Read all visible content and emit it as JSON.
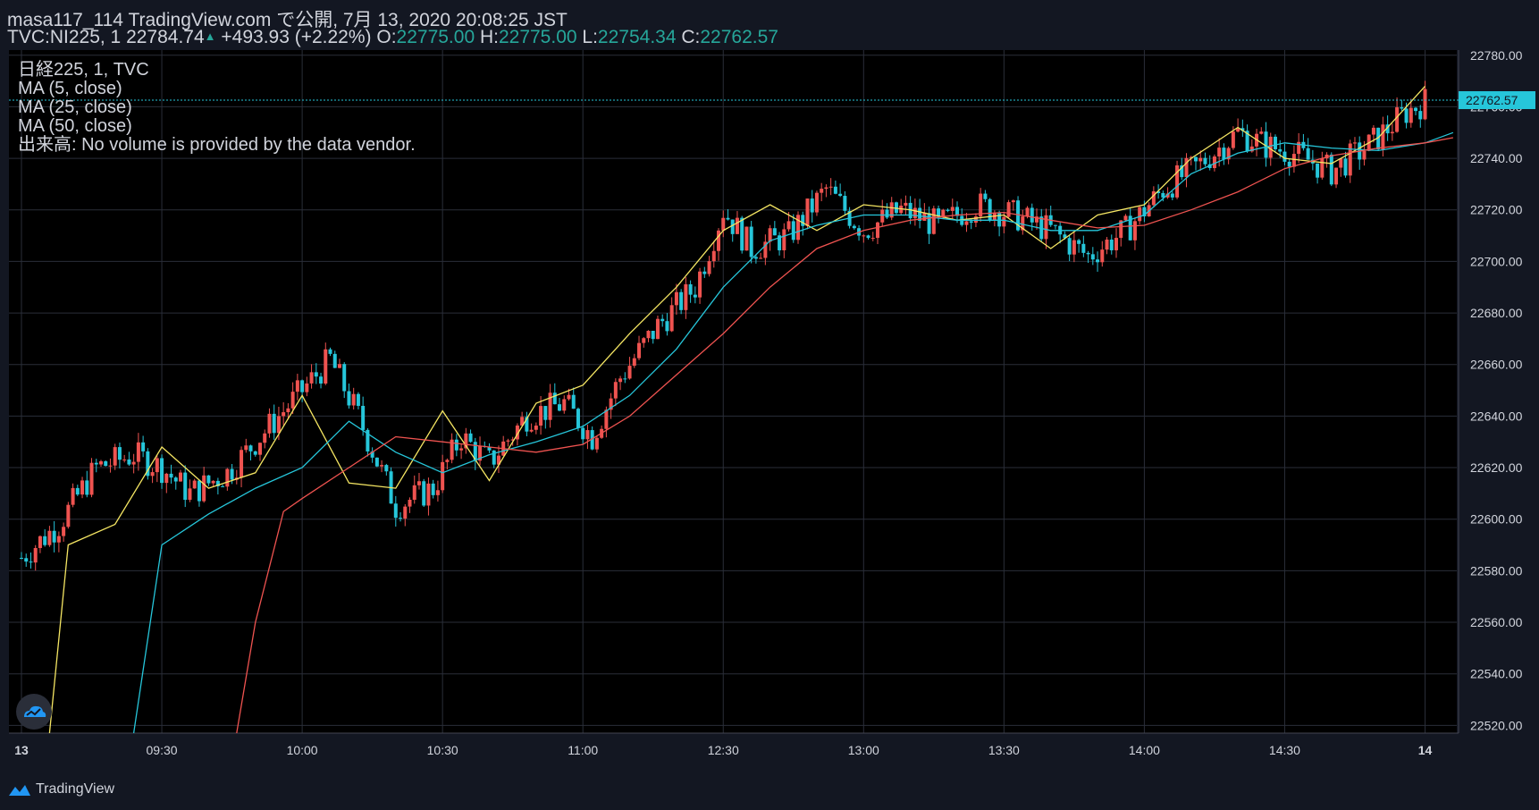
{
  "header": {
    "publisher_line": "masa117_114 TradingView.com で公開, 7月 13, 2020 20:08:25 JST",
    "symbol": "TVC:NI225, 1",
    "last": "22784.74",
    "arrow": "▲",
    "change": "+493.93 (+2.22%)",
    "o_label": "O:",
    "o_value": "22775.00",
    "h_label": "H:",
    "h_value": "22775.00",
    "l_label": "L:",
    "l_value": "22754.34",
    "c_label": "C:",
    "c_value": "22762.57"
  },
  "legend": {
    "series_title": "日経225, 1, TVC",
    "ma5": "MA (5, close)",
    "ma25": "MA (25, close)",
    "ma50": "MA (50, close)",
    "volume": "出来高: No volume is provided by the data vendor."
  },
  "footer": {
    "brand": "TradingView"
  },
  "colors": {
    "background": "#131722",
    "grid": "#2a2e39",
    "up": "#ef5350",
    "down": "#26c6da",
    "ma5": "#f5e663",
    "ma25": "#26c6da",
    "ma50": "#ef5350",
    "axis_text": "#d1d4dc",
    "price_tag_bg": "#26c6da",
    "price_tag_text": "#131722"
  },
  "icons": {
    "badge": "tradingview-cloud-icon",
    "logo": "tradingview-logo-icon"
  },
  "chart_data": {
    "type": "candlestick",
    "title": "日経225, 1, TVC",
    "ylim": [
      22517,
      22782
    ],
    "y_ticks": [
      22520,
      22540,
      22560,
      22580,
      22600,
      22620,
      22640,
      22660,
      22680,
      22700,
      22720,
      22740,
      22760,
      22780
    ],
    "y_tick_labels": [
      "22520.00",
      "22540.00",
      "22560.00",
      "22580.00",
      "22600.00",
      "22620.00",
      "22640.00",
      "22660.00",
      "22680.00",
      "22700.00",
      "22720.00",
      "22740.00",
      "22760.00",
      "22780.00"
    ],
    "x_tick_labels": [
      "13",
      "09:30",
      "10:00",
      "10:30",
      "11:00",
      "12:30",
      "13:00",
      "13:30",
      "14:00",
      "14:30",
      "14"
    ],
    "x_tick_bar_index": [
      0,
      30,
      60,
      90,
      120,
      150,
      180,
      210,
      240,
      270,
      300
    ],
    "last_price": 22762.57,
    "last_price_label": "22762.57",
    "grid": true,
    "series": [
      {
        "name": "MA (5, close)",
        "color": "#f5e663",
        "x": [
          6,
          10,
          20,
          30,
          40,
          50,
          60,
          70,
          80,
          90,
          100,
          110,
          120,
          130,
          140,
          150,
          160,
          170,
          180,
          190,
          200,
          210,
          220,
          230,
          240,
          250,
          260,
          270,
          280,
          290,
          300
        ],
        "y": [
          22517,
          22590,
          22598,
          22628,
          22612,
          22618,
          22648,
          22614,
          22612,
          22642,
          22615,
          22645,
          22652,
          22672,
          22690,
          22712,
          22722,
          22712,
          22722,
          22720,
          22716,
          22718,
          22705,
          22718,
          22722,
          22740,
          22752,
          22740,
          22738,
          22748,
          22768
        ]
      },
      {
        "name": "MA (25, close)",
        "color": "#26c6da",
        "x": [
          24,
          30,
          40,
          50,
          60,
          70,
          80,
          90,
          100,
          110,
          120,
          130,
          140,
          150,
          160,
          170,
          180,
          190,
          200,
          210,
          220,
          230,
          240,
          250,
          260,
          270,
          280,
          290,
          300,
          306
        ],
        "y": [
          22517,
          22590,
          22602,
          22612,
          22620,
          22638,
          22626,
          22618,
          22625,
          22630,
          22636,
          22648,
          22666,
          22690,
          22708,
          22714,
          22718,
          22718,
          22716,
          22716,
          22712,
          22712,
          22718,
          22734,
          22742,
          22746,
          22744,
          22743,
          22746,
          22750
        ]
      },
      {
        "name": "MA (50, close)",
        "color": "#ef5350",
        "x": [
          46,
          50,
          56,
          60,
          70,
          80,
          90,
          100,
          110,
          120,
          130,
          140,
          150,
          160,
          170,
          180,
          190,
          200,
          210,
          220,
          230,
          240,
          250,
          260,
          270,
          280,
          290,
          300,
          306
        ],
        "y": [
          22517,
          22560,
          22603,
          22608,
          22620,
          22632,
          22630,
          22628,
          22626,
          22629,
          22640,
          22656,
          22672,
          22690,
          22705,
          22712,
          22716,
          22718,
          22719,
          22716,
          22713,
          22714,
          22720,
          22727,
          22736,
          22741,
          22744,
          22746,
          22748
        ]
      }
    ],
    "candles": {
      "close_path_x": [
        0,
        8,
        16,
        24,
        30,
        36,
        44,
        52,
        60,
        66,
        72,
        80,
        88,
        94,
        100,
        108,
        116,
        122,
        128,
        136,
        144,
        150,
        156,
        164,
        172,
        180,
        188,
        196,
        204,
        212,
        220,
        228,
        236,
        244,
        252,
        260,
        266,
        272,
        280,
        288,
        296,
        300
      ],
      "close_path_y": [
        22585,
        22598,
        22620,
        22625,
        22620,
        22610,
        22618,
        22634,
        22650,
        22662,
        22640,
        22605,
        22612,
        22632,
        22622,
        22640,
        22645,
        22632,
        22655,
        22675,
        22690,
        22720,
        22705,
        22710,
        22728,
        22712,
        22720,
        22714,
        22722,
        22718,
        22712,
        22702,
        22712,
        22728,
        22738,
        22750,
        22745,
        22742,
        22735,
        22745,
        22758,
        22762
      ]
    }
  }
}
